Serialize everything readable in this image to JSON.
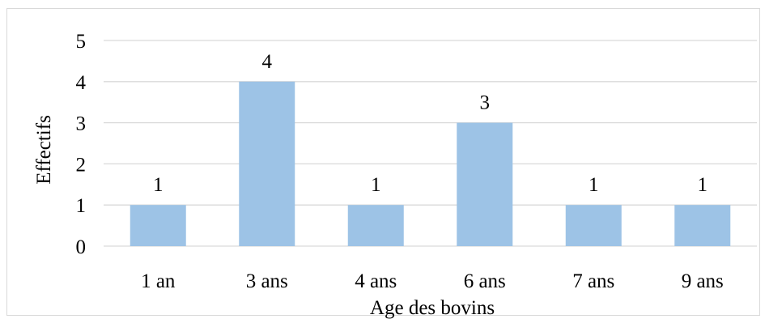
{
  "chart_data": {
    "type": "bar",
    "categories": [
      "1 an",
      "3 ans",
      "4 ans",
      "6 ans",
      "7 ans",
      "9 ans"
    ],
    "values": [
      1,
      4,
      1,
      3,
      1,
      1
    ],
    "data_labels": [
      "1",
      "4",
      "1",
      "3",
      "1",
      "1"
    ],
    "title": "",
    "xlabel": "Age des bovins",
    "ylabel": "Effectifs",
    "ylim": [
      0,
      5
    ],
    "yticks": [
      0,
      1,
      2,
      3,
      4,
      5
    ],
    "ytick_labels": [
      "0",
      "1",
      "2",
      "3",
      "4",
      "5"
    ],
    "grid": true,
    "bar_color": "#9dc3e6",
    "grid_color": "#d9d9d9"
  }
}
